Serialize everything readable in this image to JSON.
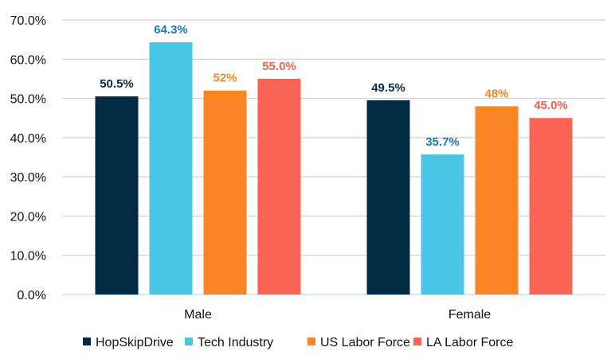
{
  "chart_data": {
    "type": "bar",
    "categories": [
      "Male",
      "Female"
    ],
    "series": [
      {
        "name": "HopSkipDrive",
        "values": [
          50.5,
          49.5
        ],
        "labels": [
          "50.5%",
          "49.5%"
        ],
        "color": "#032b44",
        "label_color": "#0b2b45"
      },
      {
        "name": "Tech Industry",
        "values": [
          64.3,
          35.7
        ],
        "labels": [
          "64.3%",
          "35.7%"
        ],
        "color": "#49c6e5",
        "label_color": "#1b78b3"
      },
      {
        "name": "US Labor Force",
        "values": [
          52,
          48
        ],
        "labels": [
          "52%",
          "48%"
        ],
        "color": "#fb8624",
        "label_color": "#f5861f"
      },
      {
        "name": "LA Labor Force",
        "values": [
          55.0,
          45.0
        ],
        "labels": [
          "55.0%",
          "45.0%"
        ],
        "color": "#fa6454",
        "label_color": "#f3604f"
      }
    ],
    "yticks": [
      "0.0%",
      "10.0%",
      "20.0%",
      "30.0%",
      "40.0%",
      "50.0%",
      "60.0%",
      "70.0%"
    ],
    "ylim": [
      0,
      70
    ],
    "grid": true,
    "legend": "bottom",
    "title": "",
    "xlabel": "",
    "ylabel": ""
  }
}
